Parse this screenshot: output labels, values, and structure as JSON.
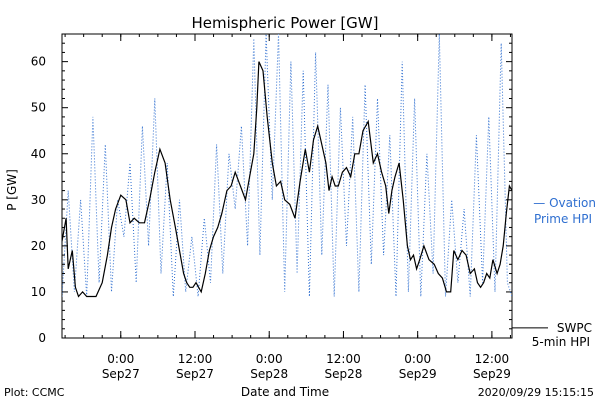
{
  "chart_data": {
    "type": "line",
    "title": "Hemispheric Power [GW]",
    "xlabel": "Date and Time",
    "ylabel": "P [GW]",
    "ylim": [
      0,
      66
    ],
    "yticks": [
      0,
      10,
      20,
      30,
      40,
      50,
      60
    ],
    "xlim": [
      "2020-09-26T14:30",
      "2020-09-29T15:15"
    ],
    "xticks": [
      {
        "time": "2020-09-27T00:00",
        "line1": "0:00",
        "line2": "Sep27"
      },
      {
        "time": "2020-09-27T12:00",
        "line1": "12:00",
        "line2": "Sep27"
      },
      {
        "time": "2020-09-28T00:00",
        "line1": "0:00",
        "line2": "Sep28"
      },
      {
        "time": "2020-09-28T12:00",
        "line1": "12:00",
        "line2": "Sep28"
      },
      {
        "time": "2020-09-29T00:00",
        "line1": "0:00",
        "line2": "Sep29"
      },
      {
        "time": "2020-09-29T12:00",
        "line1": "12:00",
        "line2": "Sep29"
      }
    ],
    "footer_left": "Plot: CCMC",
    "footer_right": "2020/09/29 15:15:15",
    "series": [
      {
        "name": "SWPC 5-min HPI",
        "legend_line1": "SWPC",
        "legend_line2": "5-min HPI",
        "color": "#000000",
        "style": "solid",
        "x": [
          "2020-09-26T14:30",
          "2020-09-26T15:10",
          "2020-09-26T15:30",
          "2020-09-26T16:10",
          "2020-09-26T16:40",
          "2020-09-26T17:10",
          "2020-09-26T17:50",
          "2020-09-26T18:30",
          "2020-09-26T19:10",
          "2020-09-26T20:00",
          "2020-09-26T21:00",
          "2020-09-26T21:50",
          "2020-09-26T22:30",
          "2020-09-26T23:10",
          "2020-09-27T00:00",
          "2020-09-27T00:50",
          "2020-09-27T01:30",
          "2020-09-27T02:10",
          "2020-09-27T03:00",
          "2020-09-27T03:50",
          "2020-09-27T04:40",
          "2020-09-27T05:30",
          "2020-09-27T06:20",
          "2020-09-27T07:10",
          "2020-09-27T08:00",
          "2020-09-27T08:50",
          "2020-09-27T09:30",
          "2020-09-27T10:10",
          "2020-09-27T10:40",
          "2020-09-27T11:10",
          "2020-09-27T11:40",
          "2020-09-27T12:10",
          "2020-09-27T13:00",
          "2020-09-27T13:40",
          "2020-09-27T14:20",
          "2020-09-27T15:00",
          "2020-09-27T15:40",
          "2020-09-27T16:20",
          "2020-09-27T17:10",
          "2020-09-27T17:50",
          "2020-09-27T18:30",
          "2020-09-27T19:20",
          "2020-09-27T20:10",
          "2020-09-27T20:50",
          "2020-09-27T21:30",
          "2020-09-27T22:00",
          "2020-09-27T22:20",
          "2020-09-27T23:00",
          "2020-09-27T23:40",
          "2020-09-28T00:30",
          "2020-09-28T01:10",
          "2020-09-28T01:50",
          "2020-09-28T02:30",
          "2020-09-28T03:20",
          "2020-09-28T04:10",
          "2020-09-28T05:00",
          "2020-09-28T05:50",
          "2020-09-28T06:30",
          "2020-09-28T07:10",
          "2020-09-28T07:50",
          "2020-09-28T08:30",
          "2020-09-28T09:10",
          "2020-09-28T09:40",
          "2020-09-28T10:10",
          "2020-09-28T10:40",
          "2020-09-28T11:10",
          "2020-09-28T11:50",
          "2020-09-28T12:30",
          "2020-09-28T13:10",
          "2020-09-28T13:50",
          "2020-09-28T14:30",
          "2020-09-28T15:10",
          "2020-09-28T16:00",
          "2020-09-28T16:50",
          "2020-09-28T17:30",
          "2020-09-28T18:10",
          "2020-09-28T18:50",
          "2020-09-28T19:20",
          "2020-09-28T19:50",
          "2020-09-28T20:20",
          "2020-09-28T21:00",
          "2020-09-28T21:40",
          "2020-09-28T22:20",
          "2020-09-28T22:50",
          "2020-09-28T23:20",
          "2020-09-28T23:50",
          "2020-09-29T00:20",
          "2020-09-29T01:00",
          "2020-09-29T01:50",
          "2020-09-29T02:40",
          "2020-09-29T03:20",
          "2020-09-29T04:00",
          "2020-09-29T04:40",
          "2020-09-29T05:20",
          "2020-09-29T05:50",
          "2020-09-29T06:30",
          "2020-09-29T07:10",
          "2020-09-29T07:50",
          "2020-09-29T08:30",
          "2020-09-29T09:10",
          "2020-09-29T09:40",
          "2020-09-29T10:10",
          "2020-09-29T10:40",
          "2020-09-29T11:10",
          "2020-09-29T11:40",
          "2020-09-29T12:10",
          "2020-09-29T12:50",
          "2020-09-29T13:20",
          "2020-09-29T13:50",
          "2020-09-29T14:20",
          "2020-09-29T14:50",
          "2020-09-29T15:15"
        ],
        "y": [
          21,
          26,
          15,
          19,
          11,
          9,
          10,
          9,
          9,
          9,
          12,
          18,
          24,
          28,
          31,
          30,
          25,
          26,
          25,
          25,
          30,
          36,
          41,
          38,
          30,
          24,
          19,
          14,
          12,
          11,
          11,
          12,
          10,
          14,
          19,
          22,
          24,
          27,
          32,
          33,
          36,
          33,
          30,
          35,
          40,
          50,
          60,
          58,
          48,
          38,
          33,
          34,
          30,
          29,
          26,
          34,
          41,
          36,
          43,
          46,
          42,
          38,
          32,
          35,
          33,
          33,
          36,
          37,
          35,
          40,
          40,
          45,
          47,
          38,
          40,
          36,
          33,
          27,
          32,
          35,
          38,
          30,
          20,
          17,
          18,
          15,
          17,
          20,
          17,
          16,
          14,
          13,
          10,
          10,
          19,
          17,
          19,
          18,
          14,
          15,
          12,
          11,
          12,
          14,
          13,
          17,
          14,
          16,
          20,
          27,
          33,
          32
        ],
        "label_color": "#000000"
      },
      {
        "name": "Ovation Prime HPI",
        "legend_line1": "— Ovation",
        "legend_line2": "Prime HPI",
        "color": "#2f6fd0",
        "style": "dotted",
        "x": [
          "2020-09-26T14:30",
          "2020-09-26T15:30",
          "2020-09-26T16:30",
          "2020-09-26T17:30",
          "2020-09-26T18:30",
          "2020-09-26T19:30",
          "2020-09-26T20:30",
          "2020-09-26T21:30",
          "2020-09-26T22:30",
          "2020-09-26T23:30",
          "2020-09-27T00:30",
          "2020-09-27T01:30",
          "2020-09-27T02:30",
          "2020-09-27T03:30",
          "2020-09-27T04:30",
          "2020-09-27T05:30",
          "2020-09-27T06:30",
          "2020-09-27T07:30",
          "2020-09-27T08:30",
          "2020-09-27T09:30",
          "2020-09-27T10:30",
          "2020-09-27T11:30",
          "2020-09-27T12:30",
          "2020-09-27T13:30",
          "2020-09-27T14:30",
          "2020-09-27T15:30",
          "2020-09-27T16:30",
          "2020-09-27T17:30",
          "2020-09-27T18:30",
          "2020-09-27T19:30",
          "2020-09-27T20:30",
          "2020-09-27T21:30",
          "2020-09-27T22:30",
          "2020-09-27T23:30",
          "2020-09-28T00:30",
          "2020-09-28T01:30",
          "2020-09-28T02:30",
          "2020-09-28T03:30",
          "2020-09-28T04:30",
          "2020-09-28T05:30",
          "2020-09-28T06:30",
          "2020-09-28T07:30",
          "2020-09-28T08:30",
          "2020-09-28T09:30",
          "2020-09-28T10:30",
          "2020-09-28T11:30",
          "2020-09-28T12:30",
          "2020-09-28T13:30",
          "2020-09-28T14:30",
          "2020-09-28T15:30",
          "2020-09-28T16:30",
          "2020-09-28T17:30",
          "2020-09-28T18:30",
          "2020-09-28T19:30",
          "2020-09-28T20:30",
          "2020-09-28T21:30",
          "2020-09-28T22:30",
          "2020-09-28T23:30",
          "2020-09-29T00:30",
          "2020-09-29T01:30",
          "2020-09-29T02:30",
          "2020-09-29T03:30",
          "2020-09-29T04:30",
          "2020-09-29T05:30",
          "2020-09-29T06:30",
          "2020-09-29T07:30",
          "2020-09-29T08:30",
          "2020-09-29T09:30",
          "2020-09-29T10:30",
          "2020-09-29T11:30",
          "2020-09-29T12:30",
          "2020-09-29T13:30",
          "2020-09-29T14:30",
          "2020-09-29T15:15"
        ],
        "y": [
          9,
          32,
          10,
          30,
          9,
          48,
          12,
          42,
          10,
          30,
          22,
          38,
          12,
          46,
          20,
          52,
          14,
          38,
          9,
          30,
          10,
          22,
          9,
          26,
          12,
          42,
          14,
          40,
          28,
          46,
          20,
          65,
          18,
          66,
          30,
          66,
          10,
          60,
          14,
          58,
          9,
          62,
          18,
          55,
          9,
          50,
          20,
          48,
          10,
          55,
          16,
          52,
          18,
          44,
          9,
          60,
          10,
          52,
          9,
          40,
          14,
          66,
          9,
          30,
          12,
          28,
          9,
          44,
          12,
          48,
          10,
          64,
          12,
          9
        ],
        "label_color": "#2f6fd0"
      }
    ]
  }
}
